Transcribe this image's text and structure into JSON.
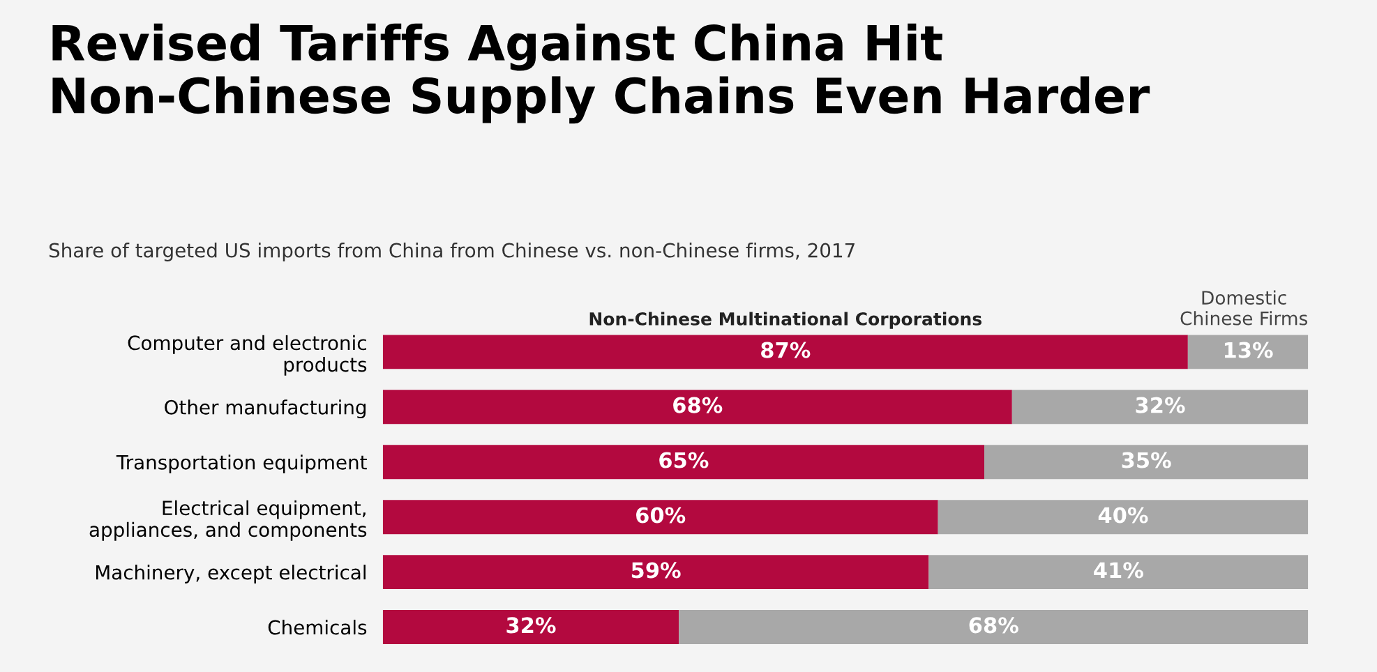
{
  "chart_data": {
    "type": "bar",
    "orientation": "horizontal",
    "stacked": true,
    "title": "Revised Tariffs Against China Hit\nNon-Chinese Supply Chains Even Harder",
    "subtitle": "Share of targeted US imports from China from Chinese vs. non-Chinese firms, 2017",
    "categories": [
      "Computer and electronic\nproducts",
      "Other manufacturing",
      "Transportation equipment",
      "Electrical equipment,\nappliances, and components",
      "Machinery, except electrical",
      "Chemicals"
    ],
    "series": [
      {
        "name": "Non-Chinese Multinational Corporations",
        "color": "#b3093f",
        "values": [
          87,
          68,
          65,
          60,
          59,
          32
        ],
        "value_labels": [
          "87%",
          "68%",
          "65%",
          "60%",
          "59%",
          "32%"
        ]
      },
      {
        "name": "Domestic\nChinese Firms",
        "color": "#a8a8a8",
        "values": [
          13,
          32,
          35,
          40,
          41,
          68
        ],
        "value_labels": [
          "13%",
          "32%",
          "35%",
          "40%",
          "41%",
          "68%"
        ]
      }
    ],
    "tick_labels": "y",
    "grid": false,
    "legend": false
  }
}
